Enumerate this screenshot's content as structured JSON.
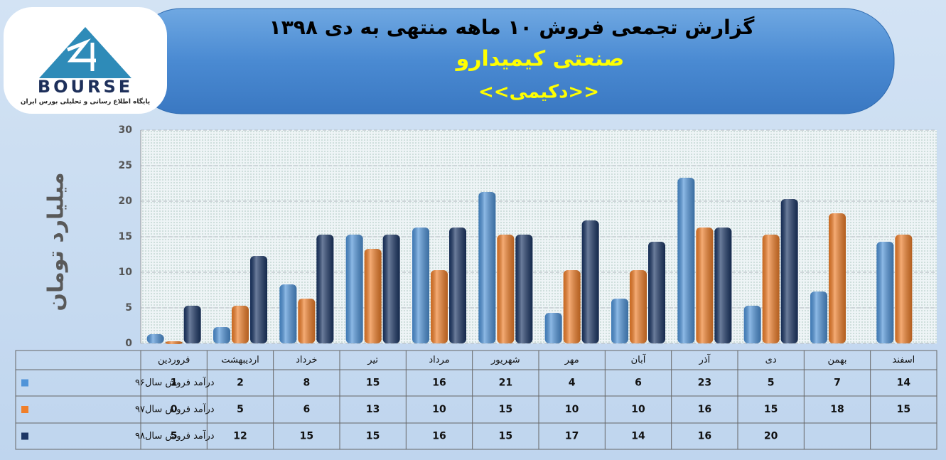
{
  "logo": {
    "name": "BOURSE",
    "tagline": "پایگاه اطلاع رسانی و تحلیلی بورس ایران"
  },
  "chart_data": {
    "type": "bar",
    "title": "گزارش تجمعی فروش  ۱۰ ماهه منتهی به دی ۱۳۹۸",
    "subtitle": "صنعتی کیمیدارو",
    "symbol": "<<دکیمی>>",
    "y_label": "میلیارد تومان",
    "categories": [
      "فروردین",
      "اردیبهشت",
      "خرداد",
      "تیر",
      "مرداد",
      "شهریور",
      "مهر",
      "آبان",
      "آذر",
      "دی",
      "بهمن",
      "اسفند"
    ],
    "series": [
      {
        "name": "درآمد فروش سال۹۶",
        "color": "#4f93d8",
        "values": [
          1,
          2,
          8,
          15,
          16,
          21,
          4,
          6,
          23,
          5,
          7,
          14
        ]
      },
      {
        "name": "درآمد فروش سال۹۷",
        "color": "#f07f2a",
        "values": [
          0,
          5,
          6,
          13,
          10,
          15,
          10,
          10,
          16,
          15,
          18,
          15
        ]
      },
      {
        "name": "درآمد فروش سال۹۸",
        "color": "#1c3766",
        "values": [
          5,
          12,
          15,
          15,
          16,
          15,
          17,
          14,
          16,
          20,
          null,
          null
        ]
      }
    ],
    "ylim": [
      0,
      30
    ],
    "yticks": [
      0,
      5,
      10,
      15,
      20,
      25,
      30
    ],
    "grid": true,
    "data_table": true
  }
}
